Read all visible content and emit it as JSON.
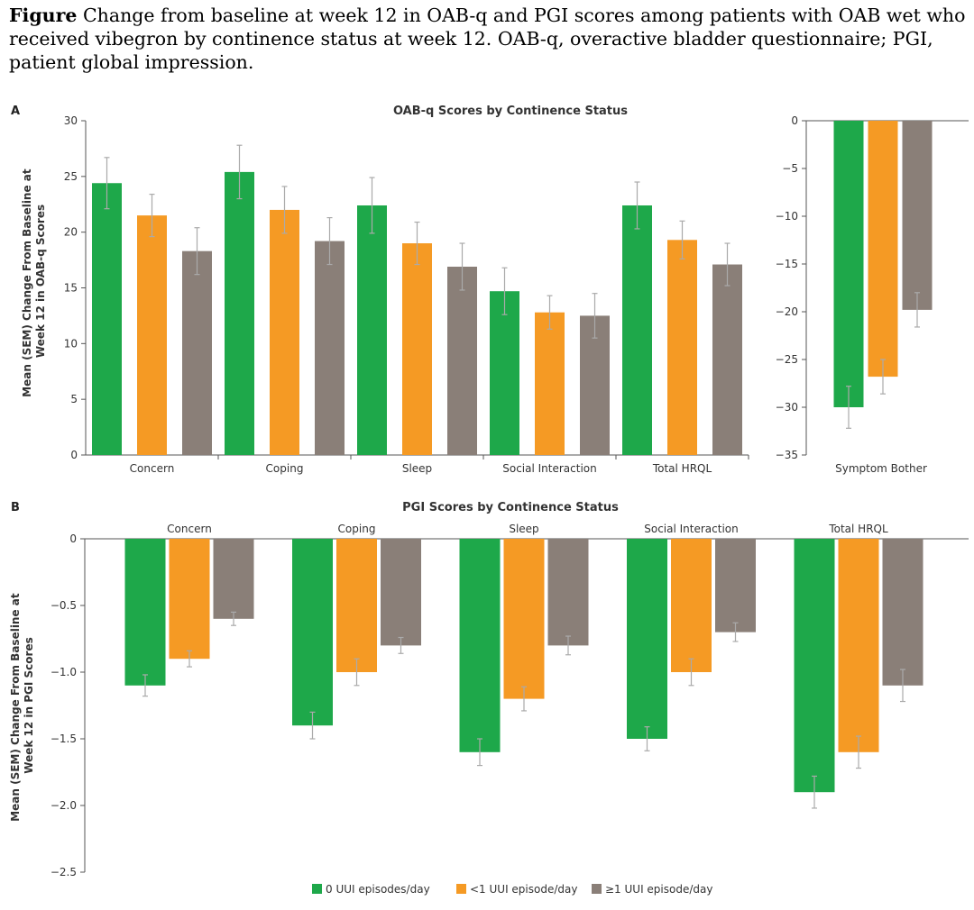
{
  "caption": {
    "bold": "Figure",
    "text": " Change from baseline at week 12 in OAB-q and PGI scores among patients with OAB wet who received vibegron by continence status at week 12. OAB-q, overactive bladder questionnaire; PGI, patient global impression."
  },
  "colors": {
    "0 UUI episodes/day": "#1ea84a",
    "<1 UUI episode/day": "#f59a24",
    "≥1 UUI episode/day": "#8a7f78",
    "axis": "#555555",
    "error_bar": "#aaaaaa"
  },
  "legend": [
    "0 UUI episodes/day",
    "<1 UUI episode/day",
    "≥1 UUI episode/day"
  ],
  "chart_data": [
    {
      "panel_label": "A",
      "type": "bar",
      "title": "OAB-q Scores by Continence Status",
      "ylabel": "Mean (SEM) Change From Baseline at Week 12 in OAB-q Scores",
      "ylim": [
        0,
        30
      ],
      "yticks": [
        0,
        5,
        10,
        15,
        20,
        25,
        30
      ],
      "categories": [
        "Concern",
        "Coping",
        "Sleep",
        "Social Interaction",
        "Total HRQL"
      ],
      "series": [
        {
          "name": "0 UUI episodes/day",
          "values": [
            24.4,
            25.4,
            22.4,
            14.7,
            22.4
          ],
          "sem": [
            2.3,
            2.4,
            2.5,
            2.1,
            2.1
          ]
        },
        {
          "name": "<1 UUI episode/day",
          "values": [
            21.5,
            22.0,
            19.0,
            12.8,
            19.3
          ],
          "sem": [
            1.9,
            2.1,
            1.9,
            1.5,
            1.7
          ]
        },
        {
          "name": "≥1 UUI episode/day",
          "values": [
            18.3,
            19.2,
            16.9,
            12.5,
            17.1
          ],
          "sem": [
            2.1,
            2.1,
            2.1,
            2.0,
            1.9
          ]
        }
      ]
    },
    {
      "type": "bar",
      "title": "",
      "ylim": [
        -35,
        0
      ],
      "yticks": [
        0,
        -5,
        -10,
        -15,
        -20,
        -25,
        -30,
        -35
      ],
      "categories": [
        "Symptom Bother"
      ],
      "series": [
        {
          "name": "0 UUI episodes/day",
          "values": [
            -30.0
          ],
          "sem": [
            2.2
          ]
        },
        {
          "name": "<1 UUI episode/day",
          "values": [
            -26.8
          ],
          "sem": [
            1.8
          ]
        },
        {
          "name": "≥1 UUI episode/day",
          "values": [
            -19.8
          ],
          "sem": [
            1.8
          ]
        }
      ]
    },
    {
      "panel_label": "B",
      "type": "bar",
      "title": "PGI Scores by Continence Status",
      "ylabel": "Mean (SEM) Change From Baseline at Week 12 in PGI Scores",
      "ylim": [
        -2.5,
        0
      ],
      "yticks": [
        "0",
        "-0.5",
        "-1.0",
        "-1.5",
        "-2.0",
        "-2.5"
      ],
      "categories": [
        "Concern",
        "Coping",
        "Sleep",
        "Social Interaction",
        "Total HRQL"
      ],
      "series": [
        {
          "name": "0 UUI episodes/day",
          "values": [
            -1.1,
            -1.4,
            -1.6,
            -1.5,
            -1.9
          ],
          "sem": [
            0.08,
            0.1,
            0.1,
            0.09,
            0.12
          ]
        },
        {
          "name": "<1 UUI episode/day",
          "values": [
            -0.9,
            -1.0,
            -1.2,
            -1.0,
            -1.6
          ],
          "sem": [
            0.06,
            0.1,
            0.09,
            0.1,
            0.12
          ]
        },
        {
          "name": "≥1 UUI episode/day",
          "values": [
            -0.6,
            -0.8,
            -0.8,
            -0.7,
            -1.1
          ],
          "sem": [
            0.05,
            0.06,
            0.07,
            0.07,
            0.12
          ]
        }
      ]
    }
  ]
}
